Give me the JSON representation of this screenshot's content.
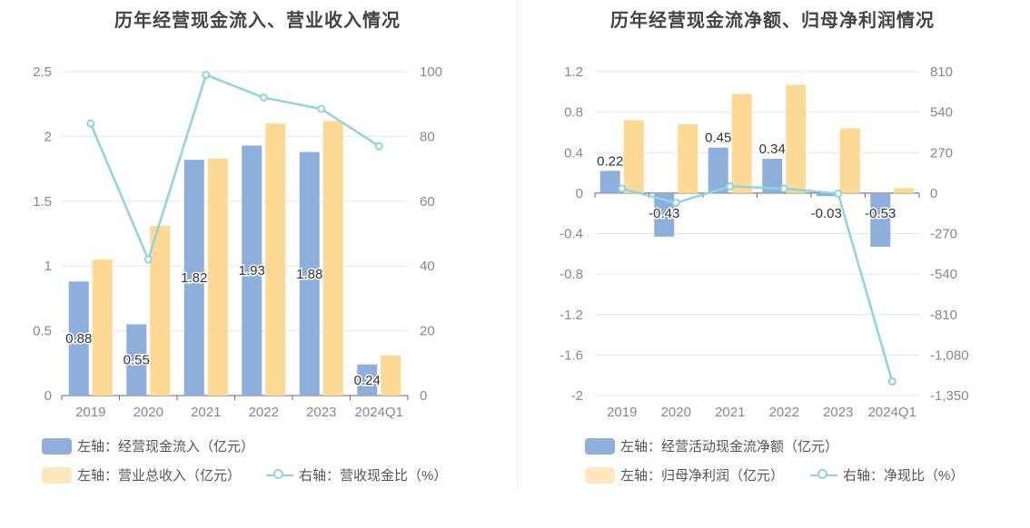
{
  "colors": {
    "inflow": "#8eaedc",
    "revenue": "#fdd996",
    "ratio_line": "#8ed5d9",
    "grid": "#e1e5ee",
    "axis_text": "#888888"
  },
  "chart_data": [
    {
      "type": "bar",
      "title": "历年经营现金流入、营业收入情况",
      "categories": [
        "2019",
        "2020",
        "2021",
        "2022",
        "2023",
        "2024Q1"
      ],
      "left_axis": {
        "ylim": [
          0,
          2.5
        ],
        "ticks": [
          "2.5",
          "2",
          "1.5",
          "1",
          "0.5",
          "0"
        ]
      },
      "right_axis": {
        "ylim": [
          0,
          100
        ],
        "ticks": [
          "100",
          "80",
          "60",
          "40",
          "20",
          "0"
        ]
      },
      "grid": true,
      "legend_position": "bottom",
      "series": [
        {
          "name": "左轴：经营现金流入（亿元）",
          "type": "bar",
          "axis": "left",
          "values": [
            0.88,
            0.55,
            1.82,
            1.93,
            1.88,
            0.24
          ],
          "labels": [
            "0.88",
            "0.55",
            "1.82",
            "1.93",
            "1.88",
            "0.24"
          ]
        },
        {
          "name": "左轴：营业总收入（亿元）",
          "type": "bar",
          "axis": "left",
          "values": [
            1.05,
            1.31,
            1.83,
            2.1,
            2.12,
            0.31
          ]
        },
        {
          "name": "右轴：营收现金比（%）",
          "type": "line",
          "axis": "right",
          "values": [
            84,
            42,
            99,
            92,
            88.5,
            77
          ]
        }
      ]
    },
    {
      "type": "bar",
      "title": "历年经营现金流净额、归母净利润情况",
      "categories": [
        "2019",
        "2020",
        "2021",
        "2022",
        "2023",
        "2024Q1"
      ],
      "left_axis": {
        "ylim": [
          -2,
          1.2
        ],
        "ticks": [
          "1.2",
          "0.8",
          "0.4",
          "0",
          "-0.4",
          "-0.8",
          "-1.2",
          "-1.6",
          "-2"
        ]
      },
      "right_axis": {
        "ylim": [
          -1350,
          810
        ],
        "ticks": [
          "810",
          "540",
          "270",
          "0",
          "-270",
          "-540",
          "-810",
          "-1,080",
          "-1,350"
        ]
      },
      "grid": true,
      "legend_position": "bottom",
      "series": [
        {
          "name": "左轴：经营活动现金流净额（亿元）",
          "type": "bar",
          "axis": "left",
          "values": [
            0.22,
            -0.43,
            0.45,
            0.34,
            -0.03,
            -0.53
          ],
          "labels": [
            "0.22",
            "-0.43",
            "0.45",
            "0.34",
            "-0.03",
            "-0.53"
          ]
        },
        {
          "name": "左轴：归母净利润（亿元）",
          "type": "bar",
          "axis": "left",
          "values": [
            0.72,
            0.68,
            0.98,
            1.07,
            0.64,
            0.05
          ]
        },
        {
          "name": "右轴：净现比（%）",
          "type": "line",
          "axis": "right",
          "values": [
            30,
            -65,
            45,
            30,
            -3,
            -1256
          ]
        }
      ]
    }
  ]
}
